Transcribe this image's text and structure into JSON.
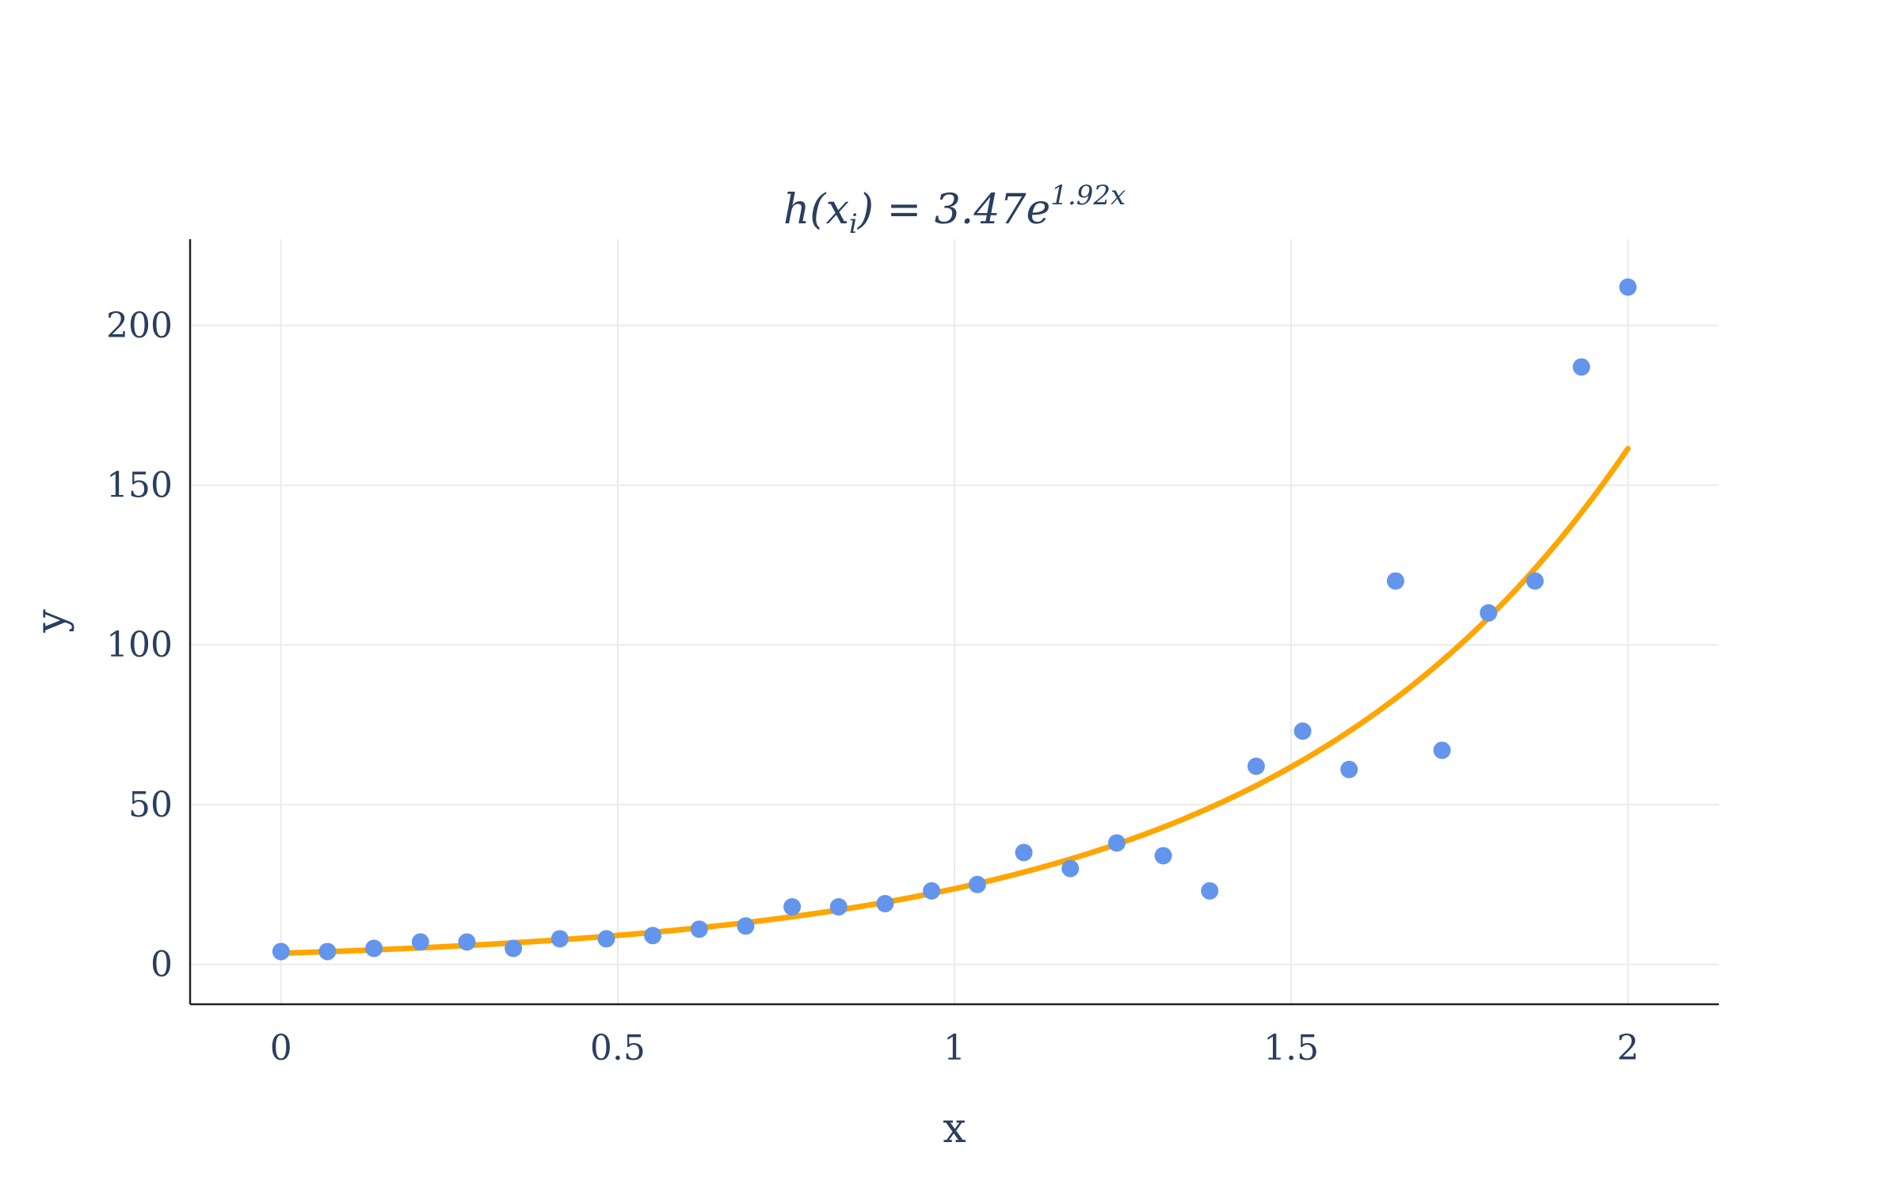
{
  "chart_data": {
    "type": "scatter",
    "title": {
      "main": "h(x",
      "sub": "i",
      "rest": ") = 3.47e",
      "sup": "1.92x"
    },
    "xlabel": "x",
    "ylabel": "y",
    "xlim": [
      -0.135,
      2.135
    ],
    "ylim": [
      -12.5,
      227
    ],
    "xticks": [
      0,
      0.5,
      1,
      1.5,
      2
    ],
    "xtick_labels": [
      "0",
      "0.5",
      "1",
      "1.5",
      "2"
    ],
    "yticks": [
      0,
      50,
      100,
      150,
      200
    ],
    "ytick_labels": [
      "0",
      "50",
      "100",
      "150",
      "200"
    ],
    "grid": true,
    "colors": {
      "points": "#6495ED",
      "fit": "#FFA500",
      "text": "#2a3f5f"
    },
    "series": [
      {
        "kind": "scatter",
        "x": [
          0,
          0.069,
          0.138,
          0.207,
          0.276,
          0.345,
          0.414,
          0.483,
          0.552,
          0.621,
          0.69,
          0.759,
          0.828,
          0.897,
          0.966,
          1.034,
          1.103,
          1.172,
          1.241,
          1.31,
          1.379,
          1.448,
          1.517,
          1.586,
          1.655,
          1.724,
          1.793,
          1.862,
          1.931,
          2.0
        ],
        "y": [
          4,
          4,
          5,
          7,
          7,
          5,
          8,
          8,
          9,
          11,
          12,
          18,
          18,
          19,
          23,
          25,
          35,
          30,
          38,
          34,
          23,
          62,
          73,
          61,
          120,
          67,
          110,
          120,
          187,
          212
        ]
      },
      {
        "kind": "line",
        "model": {
          "a": 3.47,
          "b": 1.92
        },
        "x_range": [
          0,
          2
        ]
      }
    ]
  }
}
